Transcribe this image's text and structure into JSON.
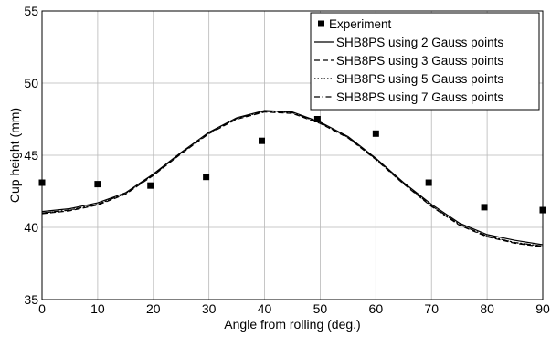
{
  "chart_data": {
    "type": "line",
    "xlabel": "Angle from rolling (deg.)",
    "ylabel": "Cup height (mm)",
    "xlim": [
      0,
      90
    ],
    "ylim": [
      35,
      55
    ],
    "xticks": [
      0,
      10,
      20,
      30,
      40,
      50,
      60,
      70,
      80,
      90
    ],
    "yticks": [
      35,
      40,
      45,
      50,
      55
    ],
    "grid": true,
    "legend_position": "top-right",
    "experiment": {
      "name": "Experiment",
      "x": [
        0,
        10,
        19.5,
        29.5,
        39.5,
        49.5,
        60,
        69.5,
        79.5,
        90
      ],
      "y": [
        43.1,
        43.0,
        42.9,
        43.5,
        46.0,
        47.5,
        46.5,
        43.1,
        41.4,
        41.2
      ]
    },
    "series": [
      {
        "name": "SHB8PS using 2 Gauss points",
        "style": "solid",
        "x": [
          0,
          5,
          10,
          15,
          20,
          25,
          30,
          35,
          40,
          45,
          50,
          55,
          60,
          65,
          70,
          75,
          80,
          85,
          90
        ],
        "y": [
          41.1,
          41.3,
          41.7,
          42.4,
          43.7,
          45.2,
          46.6,
          47.6,
          48.1,
          48.0,
          47.3,
          46.3,
          44.8,
          43.1,
          41.6,
          40.3,
          39.5,
          39.1,
          38.8
        ]
      },
      {
        "name": "SHB8PS using 3 Gauss points",
        "style": "dashed",
        "x": [
          0,
          5,
          10,
          15,
          20,
          25,
          30,
          35,
          40,
          45,
          50,
          55,
          60,
          65,
          70,
          75,
          80,
          85,
          90
        ],
        "y": [
          40.95,
          41.15,
          41.55,
          42.3,
          43.6,
          45.1,
          46.5,
          47.5,
          48.0,
          47.9,
          47.2,
          46.2,
          44.7,
          43.0,
          41.45,
          40.15,
          39.35,
          38.9,
          38.65
        ]
      },
      {
        "name": "SHB8PS using 5 Gauss points",
        "style": "dotted",
        "x": [
          0,
          5,
          10,
          15,
          20,
          25,
          30,
          35,
          40,
          45,
          50,
          55,
          60,
          65,
          70,
          75,
          80,
          85,
          90
        ],
        "y": [
          41.0,
          41.2,
          41.6,
          42.35,
          43.65,
          45.15,
          46.55,
          47.55,
          48.05,
          47.95,
          47.25,
          46.25,
          44.75,
          43.05,
          41.5,
          40.2,
          39.4,
          38.95,
          38.7
        ]
      },
      {
        "name": "SHB8PS using 7 Gauss points",
        "style": "dashdot",
        "x": [
          0,
          5,
          10,
          15,
          20,
          25,
          30,
          35,
          40,
          45,
          50,
          55,
          60,
          65,
          70,
          75,
          80,
          85,
          90
        ],
        "y": [
          41.0,
          41.2,
          41.6,
          42.35,
          43.65,
          45.15,
          46.55,
          47.55,
          48.05,
          47.95,
          47.25,
          46.25,
          44.75,
          43.05,
          41.5,
          40.2,
          39.4,
          38.95,
          38.7
        ]
      }
    ]
  }
}
